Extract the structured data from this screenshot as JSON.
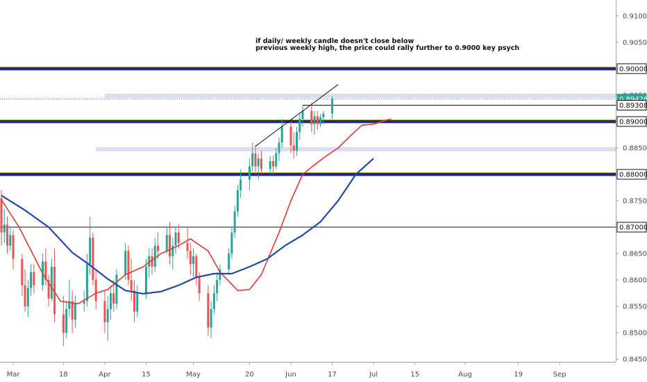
{
  "chart_data": {
    "type": "candlestick",
    "title": "",
    "xlabel": "",
    "ylabel": "",
    "ylim": [
      0.8445,
      0.913
    ],
    "y_ticks": [
      "0.91000",
      "0.90500",
      "0.90000",
      "0.89500",
      "0.89000",
      "0.88500",
      "0.88000",
      "0.87500",
      "0.87000",
      "0.86500",
      "0.86000",
      "0.85500",
      "0.85000",
      "0.84500"
    ],
    "x_tick_labels": [
      {
        "label": "Mar",
        "date": "2019-03-01"
      },
      {
        "label": "18",
        "date": "2019-03-18"
      },
      {
        "label": "Apr",
        "date": "2019-04-01"
      },
      {
        "label": "15",
        "date": "2019-04-15"
      },
      {
        "label": "May",
        "date": "2019-05-01"
      },
      {
        "label": "20",
        "date": "2019-05-20"
      },
      {
        "label": "Jun",
        "date": "2019-06-03"
      },
      {
        "label": "17",
        "date": "2019-06-17"
      },
      {
        "label": "Jul",
        "date": "2019-07-01"
      },
      {
        "label": "15",
        "date": "2019-07-15"
      },
      {
        "label": "Aug",
        "date": "2019-08-01"
      },
      {
        "label": "19",
        "date": "2019-08-19"
      },
      {
        "label": "Sep",
        "date": "2019-09-02"
      }
    ],
    "price_tags": [
      {
        "value": "0.90000",
        "style": "box"
      },
      {
        "value": "0.89426",
        "style": "last-price"
      },
      {
        "value": "0.89308",
        "style": "box"
      },
      {
        "value": "0.89000",
        "style": "box"
      },
      {
        "value": "0.88000",
        "style": "box"
      },
      {
        "value": "0.87000",
        "style": "box"
      }
    ],
    "annotation": {
      "line1": "if daily/ weekly candle doesn't close below",
      "line2": "previous weekly high, the price could rally further to 0.9000 key psych"
    },
    "horizontal_levels": [
      {
        "price": 0.9,
        "style": "key-level"
      },
      {
        "price": 0.89,
        "style": "key-level"
      },
      {
        "price": 0.88,
        "style": "key-level"
      },
      {
        "price": 0.87,
        "style": "thin-black"
      },
      {
        "price": 0.89308,
        "style": "thin-black-short",
        "from": "2019-06-07"
      },
      {
        "price": 0.89485,
        "style": "zone",
        "from": "2019-04-01"
      },
      {
        "price": 0.88475,
        "style": "zone",
        "from": "2019-03-29"
      }
    ],
    "trendline": {
      "from": {
        "date": "2019-05-22",
        "price": 0.8853
      },
      "to": {
        "date": "2019-06-19",
        "price": 0.897
      }
    },
    "colors": {
      "up": "#26a69a",
      "down": "#ef5350",
      "ema_fast": "#e53935",
      "ema_slow": "#2349a6",
      "key_level": "#1b2a8a",
      "key_level_edge": "#c9c04a",
      "zone": "#dcdcf2",
      "last_price": "#26a69a"
    },
    "series": [
      {
        "name": "",
        "role": "ema-fast",
        "values": [
          [
            0,
            0.8752
          ],
          [
            6,
            0.87
          ],
          [
            14,
            0.8612
          ],
          [
            20,
            0.856
          ],
          [
            26,
            0.8555
          ],
          [
            32,
            0.8575
          ],
          [
            36,
            0.8582
          ],
          [
            42,
            0.861
          ],
          [
            48,
            0.8625
          ],
          [
            54,
            0.865
          ],
          [
            60,
            0.8665
          ],
          [
            64,
            0.8678
          ],
          [
            70,
            0.8655
          ],
          [
            74,
            0.8615
          ],
          [
            80,
            0.858
          ],
          [
            84,
            0.8582
          ],
          [
            88,
            0.861
          ],
          [
            94,
            0.869
          ],
          [
            98,
            0.875
          ],
          [
            102,
            0.88
          ],
          [
            106,
            0.8818
          ],
          [
            110,
            0.8835
          ],
          [
            114,
            0.885
          ],
          [
            118,
            0.8872
          ],
          [
            122,
            0.8893
          ],
          [
            126,
            0.8895
          ],
          [
            130,
            0.8902
          ],
          [
            132,
            0.8905
          ]
        ]
      },
      {
        "name": "",
        "role": "ema-slow",
        "values": [
          [
            0,
            0.876
          ],
          [
            8,
            0.8732
          ],
          [
            16,
            0.87
          ],
          [
            24,
            0.8652
          ],
          [
            30,
            0.8628
          ],
          [
            36,
            0.8602
          ],
          [
            42,
            0.858
          ],
          [
            48,
            0.8574
          ],
          [
            54,
            0.8578
          ],
          [
            60,
            0.859
          ],
          [
            66,
            0.8605
          ],
          [
            72,
            0.8612
          ],
          [
            78,
            0.8612
          ],
          [
            84,
            0.8625
          ],
          [
            90,
            0.864
          ],
          [
            96,
            0.8665
          ],
          [
            102,
            0.8685
          ],
          [
            108,
            0.871
          ],
          [
            114,
            0.875
          ],
          [
            120,
            0.88
          ],
          [
            126,
            0.883
          ]
        ]
      }
    ],
    "candles": [
      {
        "d": "2019-02-25",
        "o": 0.8755,
        "h": 0.877,
        "l": 0.8665,
        "c": 0.869
      },
      {
        "d": "2019-02-26",
        "o": 0.869,
        "h": 0.8735,
        "l": 0.867,
        "c": 0.8705
      },
      {
        "d": "2019-02-27",
        "o": 0.8705,
        "h": 0.872,
        "l": 0.865,
        "c": 0.8665
      },
      {
        "d": "2019-02-28",
        "o": 0.8665,
        "h": 0.87,
        "l": 0.8655,
        "c": 0.8685
      },
      {
        "d": "2019-03-01",
        "o": 0.8685,
        "h": 0.8695,
        "l": 0.862,
        "c": 0.864
      },
      {
        "d": "2019-03-04",
        "o": 0.864,
        "h": 0.865,
        "l": 0.857,
        "c": 0.859
      },
      {
        "d": "2019-03-05",
        "o": 0.859,
        "h": 0.862,
        "l": 0.854,
        "c": 0.855
      },
      {
        "d": "2019-03-06",
        "o": 0.855,
        "h": 0.86,
        "l": 0.853,
        "c": 0.8585
      },
      {
        "d": "2019-03-07",
        "o": 0.8585,
        "h": 0.863,
        "l": 0.857,
        "c": 0.8615
      },
      {
        "d": "2019-03-08",
        "o": 0.8615,
        "h": 0.863,
        "l": 0.8575,
        "c": 0.859
      },
      {
        "d": "2019-03-11",
        "o": 0.859,
        "h": 0.865,
        "l": 0.858,
        "c": 0.8635
      },
      {
        "d": "2019-03-12",
        "o": 0.8635,
        "h": 0.866,
        "l": 0.859,
        "c": 0.86
      },
      {
        "d": "2019-03-13",
        "o": 0.86,
        "h": 0.861,
        "l": 0.855,
        "c": 0.8565
      },
      {
        "d": "2019-03-14",
        "o": 0.8565,
        "h": 0.864,
        "l": 0.856,
        "c": 0.8625
      },
      {
        "d": "2019-03-15",
        "o": 0.8625,
        "h": 0.866,
        "l": 0.852,
        "c": 0.8535
      },
      {
        "d": "2019-03-18",
        "o": 0.8535,
        "h": 0.857,
        "l": 0.8475,
        "c": 0.85
      },
      {
        "d": "2019-03-19",
        "o": 0.85,
        "h": 0.856,
        "l": 0.849,
        "c": 0.8545
      },
      {
        "d": "2019-03-20",
        "o": 0.8545,
        "h": 0.86,
        "l": 0.853,
        "c": 0.856
      },
      {
        "d": "2019-03-21",
        "o": 0.856,
        "h": 0.858,
        "l": 0.85,
        "c": 0.8525
      },
      {
        "d": "2019-03-22",
        "o": 0.8525,
        "h": 0.857,
        "l": 0.851,
        "c": 0.8555
      },
      {
        "d": "2019-03-25",
        "o": 0.8555,
        "h": 0.858,
        "l": 0.854,
        "c": 0.856
      },
      {
        "d": "2019-03-26",
        "o": 0.856,
        "h": 0.865,
        "l": 0.855,
        "c": 0.863
      },
      {
        "d": "2019-03-27",
        "o": 0.863,
        "h": 0.872,
        "l": 0.861,
        "c": 0.868
      },
      {
        "d": "2019-03-28",
        "o": 0.868,
        "h": 0.869,
        "l": 0.859,
        "c": 0.86
      },
      {
        "d": "2019-03-29",
        "o": 0.86,
        "h": 0.862,
        "l": 0.8545,
        "c": 0.856
      },
      {
        "d": "2019-04-01",
        "o": 0.856,
        "h": 0.858,
        "l": 0.85,
        "c": 0.852
      },
      {
        "d": "2019-04-02",
        "o": 0.852,
        "h": 0.857,
        "l": 0.8485,
        "c": 0.8545
      },
      {
        "d": "2019-04-03",
        "o": 0.8545,
        "h": 0.859,
        "l": 0.8525,
        "c": 0.8575
      },
      {
        "d": "2019-04-04",
        "o": 0.8575,
        "h": 0.86,
        "l": 0.854,
        "c": 0.8555
      },
      {
        "d": "2019-04-05",
        "o": 0.8555,
        "h": 0.862,
        "l": 0.8545,
        "c": 0.861
      },
      {
        "d": "2019-04-08",
        "o": 0.861,
        "h": 0.867,
        "l": 0.86,
        "c": 0.8655
      },
      {
        "d": "2019-04-09",
        "o": 0.8655,
        "h": 0.8665,
        "l": 0.859,
        "c": 0.86
      },
      {
        "d": "2019-04-10",
        "o": 0.86,
        "h": 0.864,
        "l": 0.856,
        "c": 0.858
      },
      {
        "d": "2019-04-11",
        "o": 0.858,
        "h": 0.86,
        "l": 0.852,
        "c": 0.854
      },
      {
        "d": "2019-04-12",
        "o": 0.854,
        "h": 0.859,
        "l": 0.853,
        "c": 0.8575
      },
      {
        "d": "2019-04-15",
        "o": 0.8575,
        "h": 0.864,
        "l": 0.8565,
        "c": 0.8625
      },
      {
        "d": "2019-04-16",
        "o": 0.8625,
        "h": 0.866,
        "l": 0.8605,
        "c": 0.8645
      },
      {
        "d": "2019-04-17",
        "o": 0.8645,
        "h": 0.866,
        "l": 0.861,
        "c": 0.8625
      },
      {
        "d": "2019-04-18",
        "o": 0.8625,
        "h": 0.868,
        "l": 0.8615,
        "c": 0.8665
      },
      {
        "d": "2019-04-19",
        "o": 0.8665,
        "h": 0.869,
        "l": 0.864,
        "c": 0.8655
      },
      {
        "d": "2019-04-22",
        "o": 0.8655,
        "h": 0.87,
        "l": 0.865,
        "c": 0.8685
      },
      {
        "d": "2019-04-23",
        "o": 0.8685,
        "h": 0.871,
        "l": 0.863,
        "c": 0.8645
      },
      {
        "d": "2019-04-24",
        "o": 0.8645,
        "h": 0.868,
        "l": 0.862,
        "c": 0.8665
      },
      {
        "d": "2019-04-25",
        "o": 0.8665,
        "h": 0.87,
        "l": 0.865,
        "c": 0.869
      },
      {
        "d": "2019-04-26",
        "o": 0.869,
        "h": 0.8705,
        "l": 0.866,
        "c": 0.867
      },
      {
        "d": "2019-04-29",
        "o": 0.867,
        "h": 0.87,
        "l": 0.864,
        "c": 0.8655
      },
      {
        "d": "2019-04-30",
        "o": 0.8655,
        "h": 0.867,
        "l": 0.861,
        "c": 0.863
      },
      {
        "d": "2019-05-01",
        "o": 0.863,
        "h": 0.866,
        "l": 0.8605,
        "c": 0.8645
      },
      {
        "d": "2019-05-02",
        "o": 0.8645,
        "h": 0.865,
        "l": 0.859,
        "c": 0.8605
      },
      {
        "d": "2019-05-03",
        "o": 0.8605,
        "h": 0.8615,
        "l": 0.856,
        "c": 0.8575
      },
      {
        "d": "2019-05-06",
        "o": 0.8575,
        "h": 0.859,
        "l": 0.8495,
        "c": 0.851
      },
      {
        "d": "2019-05-07",
        "o": 0.851,
        "h": 0.856,
        "l": 0.849,
        "c": 0.8545
      },
      {
        "d": "2019-05-08",
        "o": 0.8545,
        "h": 0.859,
        "l": 0.8535,
        "c": 0.8575
      },
      {
        "d": "2019-05-09",
        "o": 0.8575,
        "h": 0.8615,
        "l": 0.856,
        "c": 0.86
      },
      {
        "d": "2019-05-10",
        "o": 0.86,
        "h": 0.863,
        "l": 0.859,
        "c": 0.862
      },
      {
        "d": "2019-05-13",
        "o": 0.862,
        "h": 0.866,
        "l": 0.861,
        "c": 0.865
      },
      {
        "d": "2019-05-14",
        "o": 0.865,
        "h": 0.87,
        "l": 0.864,
        "c": 0.869
      },
      {
        "d": "2019-05-15",
        "o": 0.869,
        "h": 0.874,
        "l": 0.868,
        "c": 0.873
      },
      {
        "d": "2019-05-16",
        "o": 0.873,
        "h": 0.878,
        "l": 0.872,
        "c": 0.877
      },
      {
        "d": "2019-05-17",
        "o": 0.877,
        "h": 0.881,
        "l": 0.8755,
        "c": 0.879
      },
      {
        "d": "2019-05-20",
        "o": 0.879,
        "h": 0.883,
        "l": 0.877,
        "c": 0.8815
      },
      {
        "d": "2019-05-21",
        "o": 0.8815,
        "h": 0.886,
        "l": 0.8805,
        "c": 0.884
      },
      {
        "d": "2019-05-22",
        "o": 0.884,
        "h": 0.8855,
        "l": 0.88,
        "c": 0.8815
      },
      {
        "d": "2019-05-23",
        "o": 0.8815,
        "h": 0.884,
        "l": 0.879,
        "c": 0.883
      },
      {
        "d": "2019-05-24",
        "o": 0.883,
        "h": 0.8845,
        "l": 0.88,
        "c": 0.881
      },
      {
        "d": "2019-05-27",
        "o": 0.881,
        "h": 0.8835,
        "l": 0.88,
        "c": 0.8825
      },
      {
        "d": "2019-05-28",
        "o": 0.8825,
        "h": 0.8835,
        "l": 0.88,
        "c": 0.8815
      },
      {
        "d": "2019-05-29",
        "o": 0.8815,
        "h": 0.885,
        "l": 0.881,
        "c": 0.884
      },
      {
        "d": "2019-05-30",
        "o": 0.884,
        "h": 0.887,
        "l": 0.8825,
        "c": 0.886
      },
      {
        "d": "2019-05-31",
        "o": 0.886,
        "h": 0.8905,
        "l": 0.885,
        "c": 0.889
      },
      {
        "d": "2019-06-03",
        "o": 0.889,
        "h": 0.89,
        "l": 0.884,
        "c": 0.8855
      },
      {
        "d": "2019-06-04",
        "o": 0.8855,
        "h": 0.888,
        "l": 0.883,
        "c": 0.8845
      },
      {
        "d": "2019-06-05",
        "o": 0.8845,
        "h": 0.889,
        "l": 0.8835,
        "c": 0.888
      },
      {
        "d": "2019-06-06",
        "o": 0.888,
        "h": 0.8915,
        "l": 0.8865,
        "c": 0.8905
      },
      {
        "d": "2019-06-07",
        "o": 0.8905,
        "h": 0.893,
        "l": 0.889,
        "c": 0.892
      },
      {
        "d": "2019-06-10",
        "o": 0.892,
        "h": 0.8935,
        "l": 0.888,
        "c": 0.8895
      },
      {
        "d": "2019-06-11",
        "o": 0.8895,
        "h": 0.892,
        "l": 0.8875,
        "c": 0.891
      },
      {
        "d": "2019-06-12",
        "o": 0.891,
        "h": 0.892,
        "l": 0.8885,
        "c": 0.8895
      },
      {
        "d": "2019-06-13",
        "o": 0.8895,
        "h": 0.8915,
        "l": 0.889,
        "c": 0.8908
      },
      {
        "d": "2019-06-14",
        "o": 0.8908,
        "h": 0.892,
        "l": 0.8895,
        "c": 0.8915
      },
      {
        "d": "2019-06-17",
        "o": 0.8915,
        "h": 0.8948,
        "l": 0.8905,
        "c": 0.8943
      }
    ]
  }
}
